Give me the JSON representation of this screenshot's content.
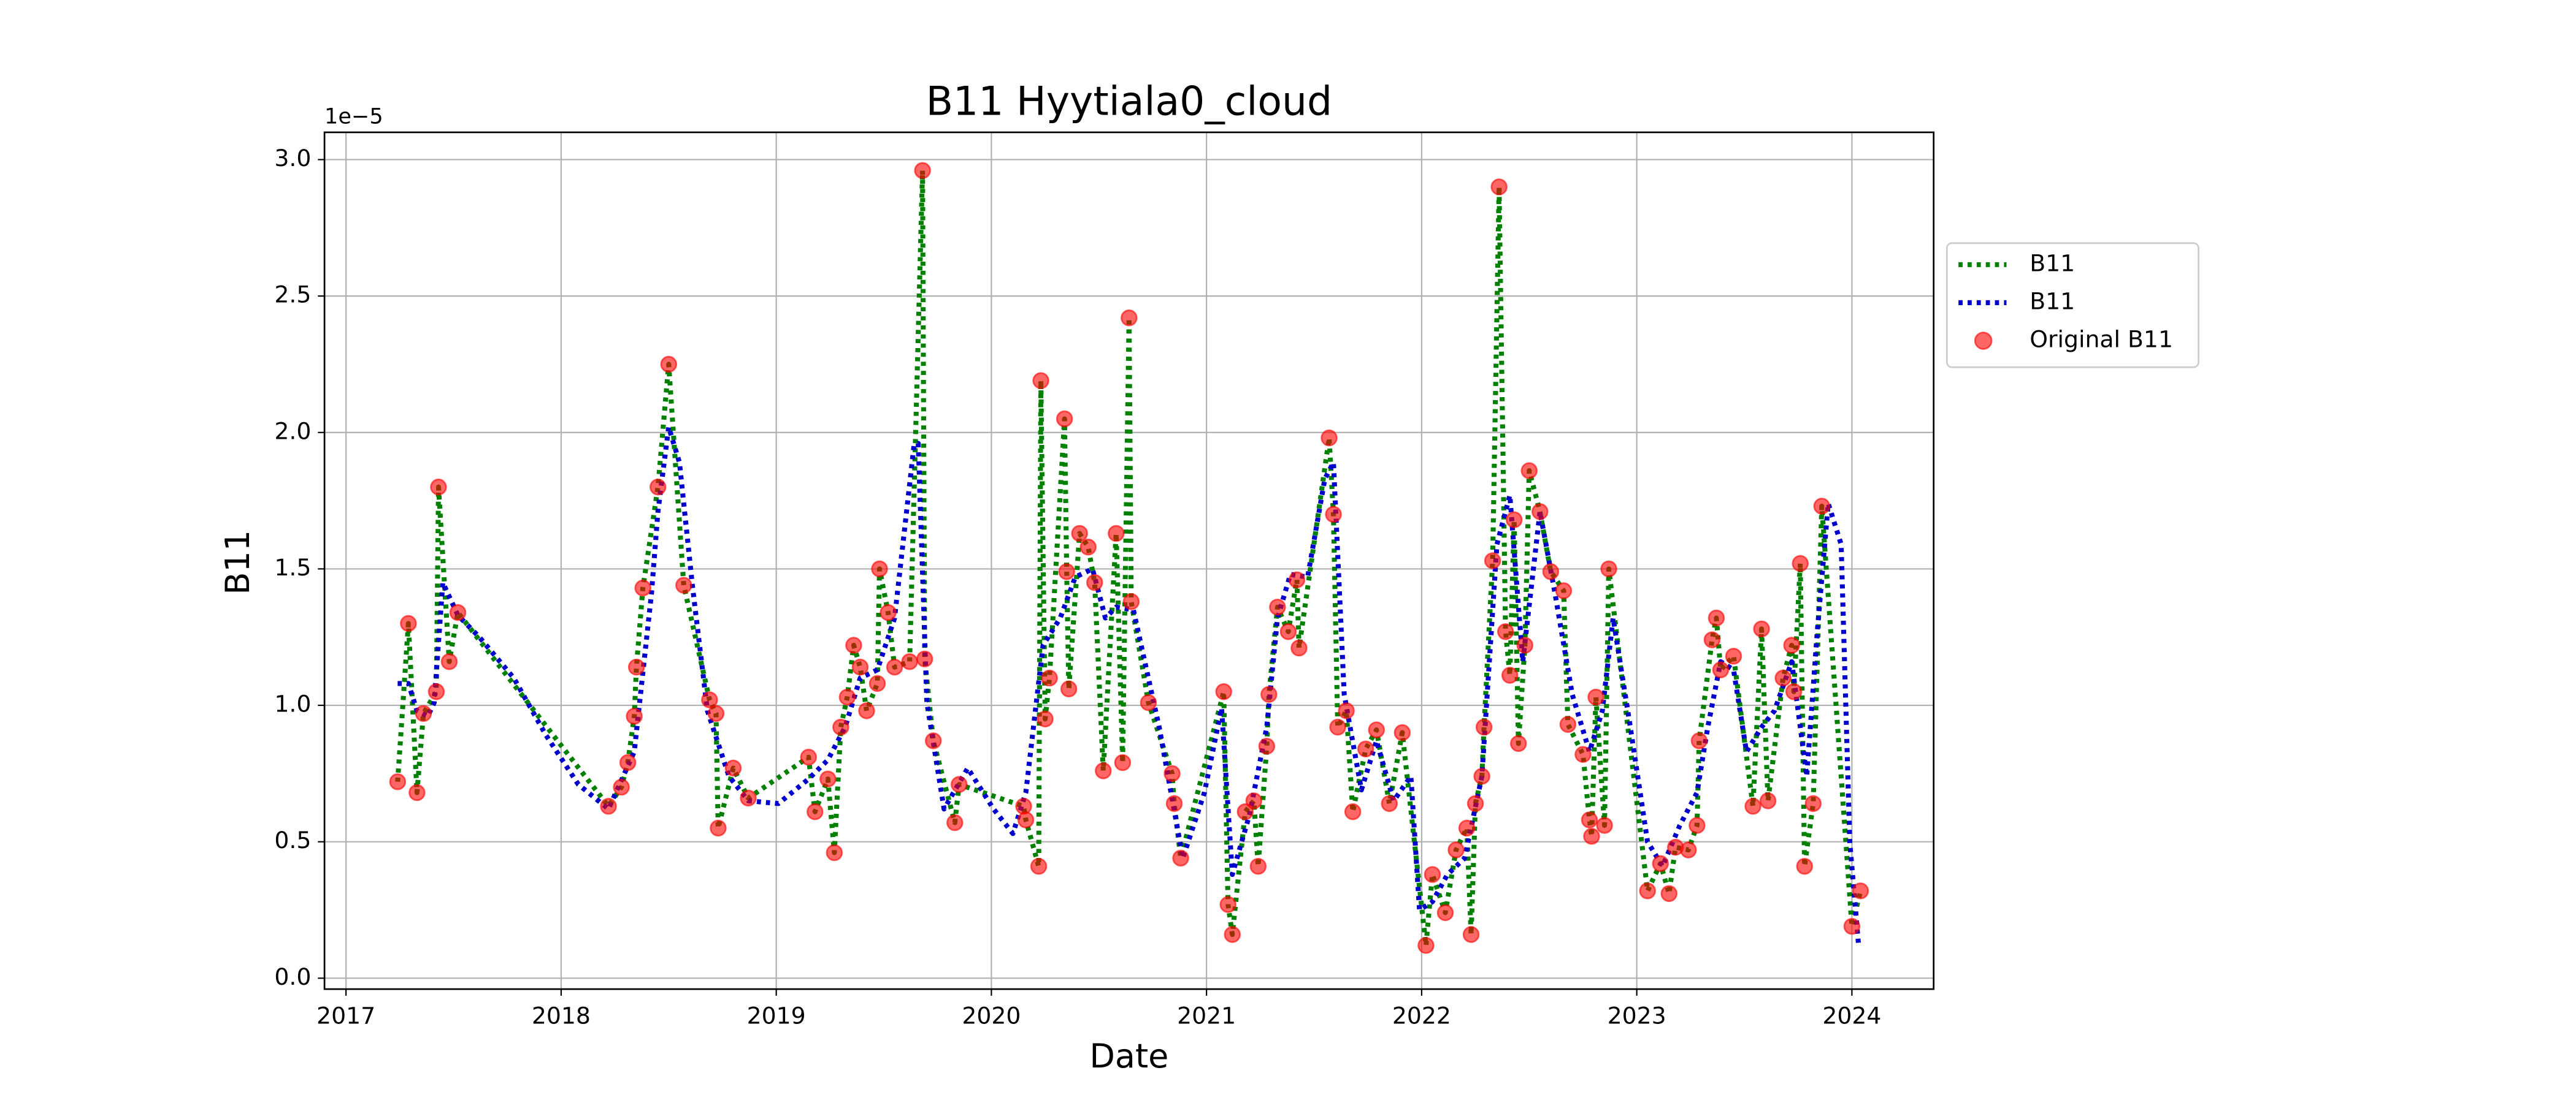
{
  "chart_data": {
    "type": "line",
    "title": "B11 Hyytiala0_cloud",
    "xlabel": "Date",
    "ylabel": "B11",
    "y_offset_label": "1e−5",
    "xlim": [
      2016.9,
      2024.38
    ],
    "xticks": [
      2017,
      2018,
      2019,
      2020,
      2021,
      2022,
      2023,
      2024
    ],
    "ylim": [
      -0.04,
      3.1
    ],
    "yticks": [
      {
        "value": 0,
        "label": "0.0"
      },
      {
        "value": 0.5,
        "label": "0.5"
      },
      {
        "value": 1,
        "label": "1.0"
      },
      {
        "value": 1.5,
        "label": "1.5"
      },
      {
        "value": 2,
        "label": "2.0"
      },
      {
        "value": 2.5,
        "label": "2.5"
      },
      {
        "value": 3,
        "label": "3.0"
      }
    ],
    "grid": true,
    "legend": "right",
    "series": [
      {
        "name": "B11",
        "color": "#008000",
        "style": "dotted",
        "x": [
          2017.24,
          2017.29,
          2017.33,
          2017.36,
          2017.42,
          2017.43,
          2017.48,
          2017.52,
          2018.22,
          2018.28,
          2018.31,
          2018.34,
          2018.35,
          2018.38,
          2018.45,
          2018.5,
          2018.57,
          2018.69,
          2018.72,
          2018.73,
          2018.8,
          2018.87,
          2019.15,
          2019.18,
          2019.24,
          2019.27,
          2019.3,
          2019.33,
          2019.36,
          2019.39,
          2019.42,
          2019.47,
          2019.48,
          2019.52,
          2019.55,
          2019.62,
          2019.68,
          2019.69,
          2019.73,
          2019.83,
          2019.85,
          2020.15,
          2020.16,
          2020.22,
          2020.23,
          2020.25,
          2020.27,
          2020.34,
          2020.35,
          2020.36,
          2020.41,
          2020.45,
          2020.48,
          2020.52,
          2020.58,
          2020.61,
          2020.64,
          2020.65,
          2020.73,
          2020.84,
          2020.85,
          2020.88,
          2021.08,
          2021.1,
          2021.12,
          2021.18,
          2021.22,
          2021.24,
          2021.28,
          2021.29,
          2021.33,
          2021.38,
          2021.42,
          2021.43,
          2021.57,
          2021.59,
          2021.61,
          2021.65,
          2021.68,
          2021.74,
          2021.79,
          2021.85,
          2021.91,
          2022.02,
          2022.05,
          2022.11,
          2022.16,
          2022.21,
          2022.23,
          2022.25,
          2022.28,
          2022.29,
          2022.33,
          2022.36,
          2022.39,
          2022.41,
          2022.43,
          2022.45,
          2022.48,
          2022.5,
          2022.55,
          2022.6,
          2022.66,
          2022.68,
          2022.75,
          2022.78,
          2022.79,
          2022.81,
          2022.85,
          2022.87,
          2023.05,
          2023.11,
          2023.15,
          2023.18,
          2023.24,
          2023.28,
          2023.29,
          2023.35,
          2023.37,
          2023.39,
          2023.45,
          2023.54,
          2023.58,
          2023.61,
          2023.68,
          2023.72,
          2023.73,
          2023.76,
          2023.78,
          2023.82,
          2023.86,
          2024,
          2024.04
        ],
        "values": [
          0.72,
          1.3,
          0.68,
          0.97,
          1.05,
          1.8,
          1.16,
          1.34,
          0.63,
          0.7,
          0.79,
          0.96,
          1.14,
          1.43,
          1.8,
          2.25,
          1.44,
          1.02,
          0.97,
          0.55,
          0.77,
          0.66,
          0.81,
          0.61,
          0.73,
          0.46,
          0.92,
          1.03,
          1.22,
          1.14,
          0.98,
          1.08,
          1.5,
          1.34,
          1.14,
          1.16,
          2.96,
          1.17,
          0.87,
          0.57,
          0.71,
          0.63,
          0.58,
          0.41,
          2.19,
          0.95,
          1.1,
          2.05,
          1.49,
          1.06,
          1.63,
          1.58,
          1.45,
          0.76,
          1.63,
          0.79,
          2.42,
          1.38,
          1.01,
          0.75,
          0.64,
          0.44,
          1.05,
          0.27,
          0.16,
          0.61,
          0.65,
          0.41,
          0.85,
          1.04,
          1.36,
          1.27,
          1.46,
          1.21,
          1.98,
          1.7,
          0.92,
          0.98,
          0.61,
          0.84,
          0.91,
          0.64,
          0.9,
          0.12,
          0.38,
          0.24,
          0.47,
          0.55,
          0.16,
          0.64,
          0.74,
          0.92,
          1.53,
          2.9,
          1.27,
          1.11,
          1.68,
          0.86,
          1.22,
          1.86,
          1.71,
          1.49,
          1.42,
          0.93,
          0.82,
          0.58,
          0.52,
          1.03,
          0.56,
          1.5,
          0.32,
          0.42,
          0.31,
          0.48,
          0.47,
          0.56,
          0.87,
          1.24,
          1.32,
          1.13,
          1.18,
          0.63,
          1.28,
          0.65,
          1.1,
          1.22,
          1.05,
          1.52,
          0.41,
          0.64,
          1.73,
          0.19,
          0.32
        ]
      },
      {
        "name": "B11",
        "color": "#0000cc",
        "style": "dotted",
        "x": [
          2017.24,
          2017.29,
          2017.33,
          2017.38,
          2017.41,
          2017.45,
          2017.52,
          2017.62,
          2017.78,
          2017.93,
          2018.08,
          2018.22,
          2018.34,
          2018.42,
          2018.45,
          2018.5,
          2018.55,
          2018.61,
          2018.68,
          2018.78,
          2018.87,
          2019.01,
          2019.15,
          2019.24,
          2019.32,
          2019.39,
          2019.47,
          2019.55,
          2019.64,
          2019.66,
          2019.7,
          2019.78,
          2019.89,
          2020.01,
          2020.1,
          2020.16,
          2020.24,
          2020.32,
          2020.39,
          2020.47,
          2020.53,
          2020.58,
          2020.66,
          2020.78,
          2020.89,
          2020.99,
          2021.07,
          2021.12,
          2021.2,
          2021.28,
          2021.33,
          2021.39,
          2021.47,
          2021.55,
          2021.59,
          2021.64,
          2021.72,
          2021.79,
          2021.87,
          2021.95,
          2021.99,
          2022.05,
          2022.12,
          2022.2,
          2022.28,
          2022.35,
          2022.41,
          2022.47,
          2022.55,
          2022.62,
          2022.7,
          2022.78,
          2022.84,
          2022.89,
          2022.97,
          2023.05,
          2023.12,
          2023.2,
          2023.28,
          2023.33,
          2023.39,
          2023.45,
          2023.51,
          2023.58,
          2023.64,
          2023.72,
          2023.79,
          2023.84,
          2023.89,
          2023.95,
          2023.99,
          2024.03
        ],
        "values": [
          1.08,
          1.08,
          0.98,
          0.96,
          1.01,
          1.45,
          1.33,
          1.25,
          1.1,
          0.89,
          0.71,
          0.62,
          0.83,
          1.41,
          1.71,
          2.02,
          1.89,
          1.44,
          0.98,
          0.74,
          0.65,
          0.64,
          0.73,
          0.8,
          0.92,
          1.1,
          1.13,
          1.32,
          1.95,
          1.96,
          1.01,
          0.62,
          0.77,
          0.62,
          0.53,
          0.68,
          1.22,
          1.32,
          1.47,
          1.5,
          1.32,
          1.36,
          1.35,
          0.92,
          0.44,
          0.68,
          0.99,
          0.38,
          0.6,
          0.92,
          1.32,
          1.48,
          1.47,
          1.83,
          1.89,
          1.04,
          0.69,
          0.87,
          0.65,
          0.74,
          0.25,
          0.28,
          0.38,
          0.44,
          0.74,
          1.59,
          1.77,
          1.16,
          1.71,
          1.41,
          1.04,
          0.83,
          0.98,
          1.32,
          0.92,
          0.5,
          0.41,
          0.56,
          0.68,
          0.92,
          1.16,
          1.13,
          0.83,
          0.92,
          0.98,
          1.16,
          0.74,
          1.28,
          1.74,
          1.59,
          0.5,
          0.13
        ]
      },
      {
        "name": "Original B11",
        "color": "#ff0000",
        "style": "scatter",
        "x": [
          2017.24,
          2017.29,
          2017.33,
          2017.36,
          2017.42,
          2017.43,
          2017.48,
          2017.52,
          2018.22,
          2018.28,
          2018.31,
          2018.34,
          2018.35,
          2018.38,
          2018.45,
          2018.5,
          2018.57,
          2018.69,
          2018.72,
          2018.73,
          2018.8,
          2018.87,
          2019.15,
          2019.18,
          2019.24,
          2019.27,
          2019.3,
          2019.33,
          2019.36,
          2019.39,
          2019.42,
          2019.47,
          2019.48,
          2019.52,
          2019.55,
          2019.62,
          2019.68,
          2019.69,
          2019.73,
          2019.83,
          2019.85,
          2020.15,
          2020.16,
          2020.22,
          2020.23,
          2020.25,
          2020.27,
          2020.34,
          2020.35,
          2020.36,
          2020.41,
          2020.45,
          2020.48,
          2020.52,
          2020.58,
          2020.61,
          2020.64,
          2020.65,
          2020.73,
          2020.84,
          2020.85,
          2020.88,
          2021.08,
          2021.1,
          2021.12,
          2021.18,
          2021.22,
          2021.24,
          2021.28,
          2021.29,
          2021.33,
          2021.38,
          2021.42,
          2021.43,
          2021.57,
          2021.59,
          2021.61,
          2021.65,
          2021.68,
          2021.74,
          2021.79,
          2021.85,
          2021.91,
          2022.02,
          2022.05,
          2022.11,
          2022.16,
          2022.21,
          2022.23,
          2022.25,
          2022.28,
          2022.29,
          2022.33,
          2022.36,
          2022.39,
          2022.41,
          2022.43,
          2022.45,
          2022.48,
          2022.5,
          2022.55,
          2022.6,
          2022.66,
          2022.68,
          2022.75,
          2022.78,
          2022.79,
          2022.81,
          2022.85,
          2022.87,
          2023.05,
          2023.11,
          2023.15,
          2023.18,
          2023.24,
          2023.28,
          2023.29,
          2023.35,
          2023.37,
          2023.39,
          2023.45,
          2023.54,
          2023.58,
          2023.61,
          2023.68,
          2023.72,
          2023.73,
          2023.76,
          2023.78,
          2023.82,
          2023.86,
          2024,
          2024.04
        ],
        "values": [
          0.72,
          1.3,
          0.68,
          0.97,
          1.05,
          1.8,
          1.16,
          1.34,
          0.63,
          0.7,
          0.79,
          0.96,
          1.14,
          1.43,
          1.8,
          2.25,
          1.44,
          1.02,
          0.97,
          0.55,
          0.77,
          0.66,
          0.81,
          0.61,
          0.73,
          0.46,
          0.92,
          1.03,
          1.22,
          1.14,
          0.98,
          1.08,
          1.5,
          1.34,
          1.14,
          1.16,
          2.96,
          1.17,
          0.87,
          0.57,
          0.71,
          0.63,
          0.58,
          0.41,
          2.19,
          0.95,
          1.1,
          2.05,
          1.49,
          1.06,
          1.63,
          1.58,
          1.45,
          0.76,
          1.63,
          0.79,
          2.42,
          1.38,
          1.01,
          0.75,
          0.64,
          0.44,
          1.05,
          0.27,
          0.16,
          0.61,
          0.65,
          0.41,
          0.85,
          1.04,
          1.36,
          1.27,
          1.46,
          1.21,
          1.98,
          1.7,
          0.92,
          0.98,
          0.61,
          0.84,
          0.91,
          0.64,
          0.9,
          0.12,
          0.38,
          0.24,
          0.47,
          0.55,
          0.16,
          0.64,
          0.74,
          0.92,
          1.53,
          2.9,
          1.27,
          1.11,
          1.68,
          0.86,
          1.22,
          1.86,
          1.71,
          1.49,
          1.42,
          0.93,
          0.82,
          0.58,
          0.52,
          1.03,
          0.56,
          1.5,
          0.32,
          0.42,
          0.31,
          0.48,
          0.47,
          0.56,
          0.87,
          1.24,
          1.32,
          1.13,
          1.18,
          0.63,
          1.28,
          0.65,
          1.1,
          1.22,
          1.05,
          1.52,
          0.41,
          0.64,
          1.73,
          0.19,
          0.32
        ]
      }
    ]
  }
}
